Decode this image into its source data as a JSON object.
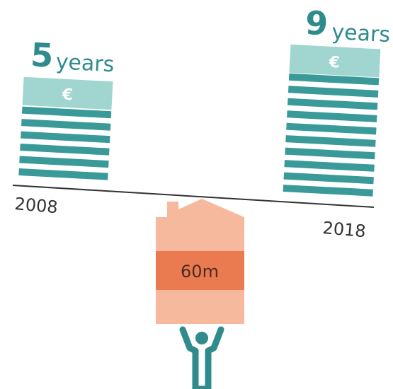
{
  "left": {
    "number": 5,
    "unit": "years",
    "currency": "€",
    "year": "2008"
  },
  "right": {
    "number": 9,
    "unit": "years",
    "currency": "€",
    "year": "2018"
  },
  "house": {
    "label": "60m"
  }
}
